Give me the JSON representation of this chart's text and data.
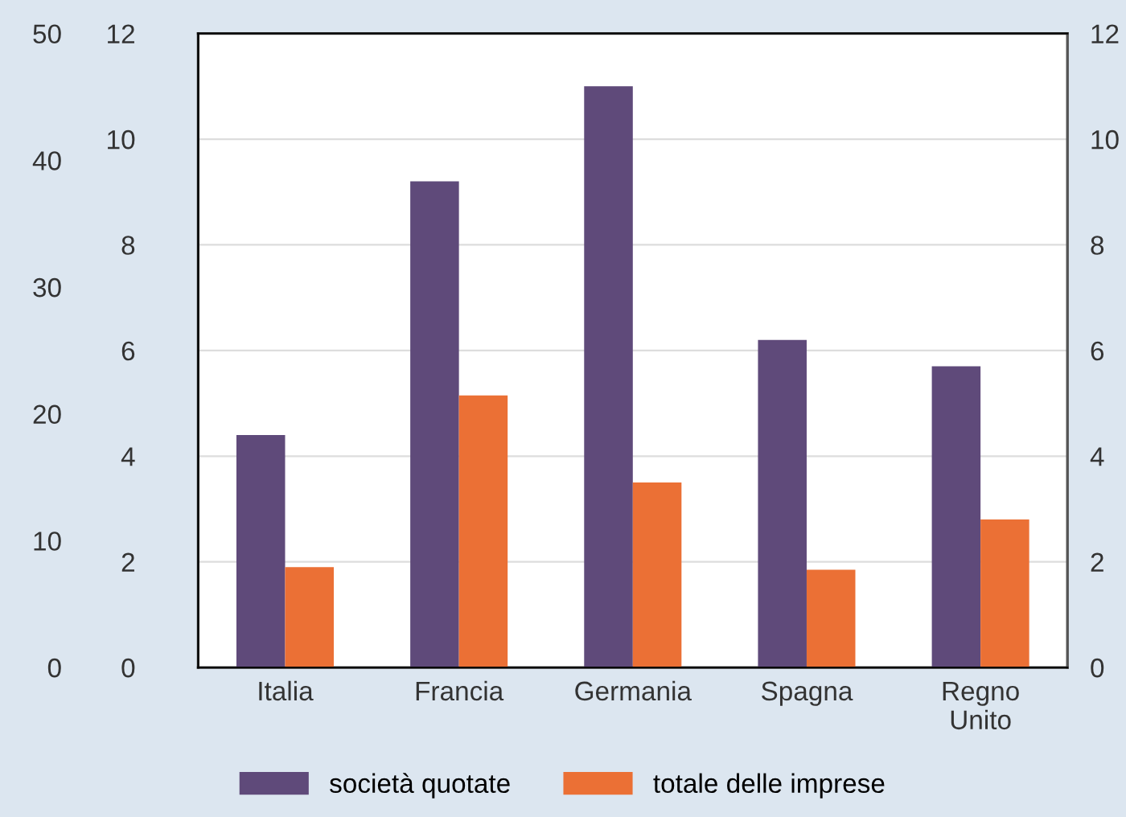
{
  "chart_data": {
    "type": "bar",
    "categories": [
      "Italia",
      "Francia",
      "Germania",
      "Spagna",
      "Regno\nUnito"
    ],
    "series": [
      {
        "name": "società quotate",
        "color": "#5f4a7a",
        "values": [
          4.4,
          9.2,
          11.0,
          6.2,
          5.7
        ]
      },
      {
        "name": "totale delle imprese",
        "color": "#eb7035",
        "values": [
          1.9,
          5.15,
          3.5,
          1.85,
          2.8
        ]
      }
    ],
    "ylim": [
      0,
      12
    ],
    "yticks": [
      0,
      2,
      4,
      6,
      8,
      10,
      12
    ],
    "y2lim": [
      0,
      12
    ],
    "y2ticks": [
      0,
      2,
      4,
      6,
      8,
      10,
      12
    ],
    "y3lim": [
      0,
      50
    ],
    "y3ticks": [
      0,
      10,
      20,
      30,
      40,
      50
    ],
    "grid": "y",
    "legend": "bottom"
  }
}
